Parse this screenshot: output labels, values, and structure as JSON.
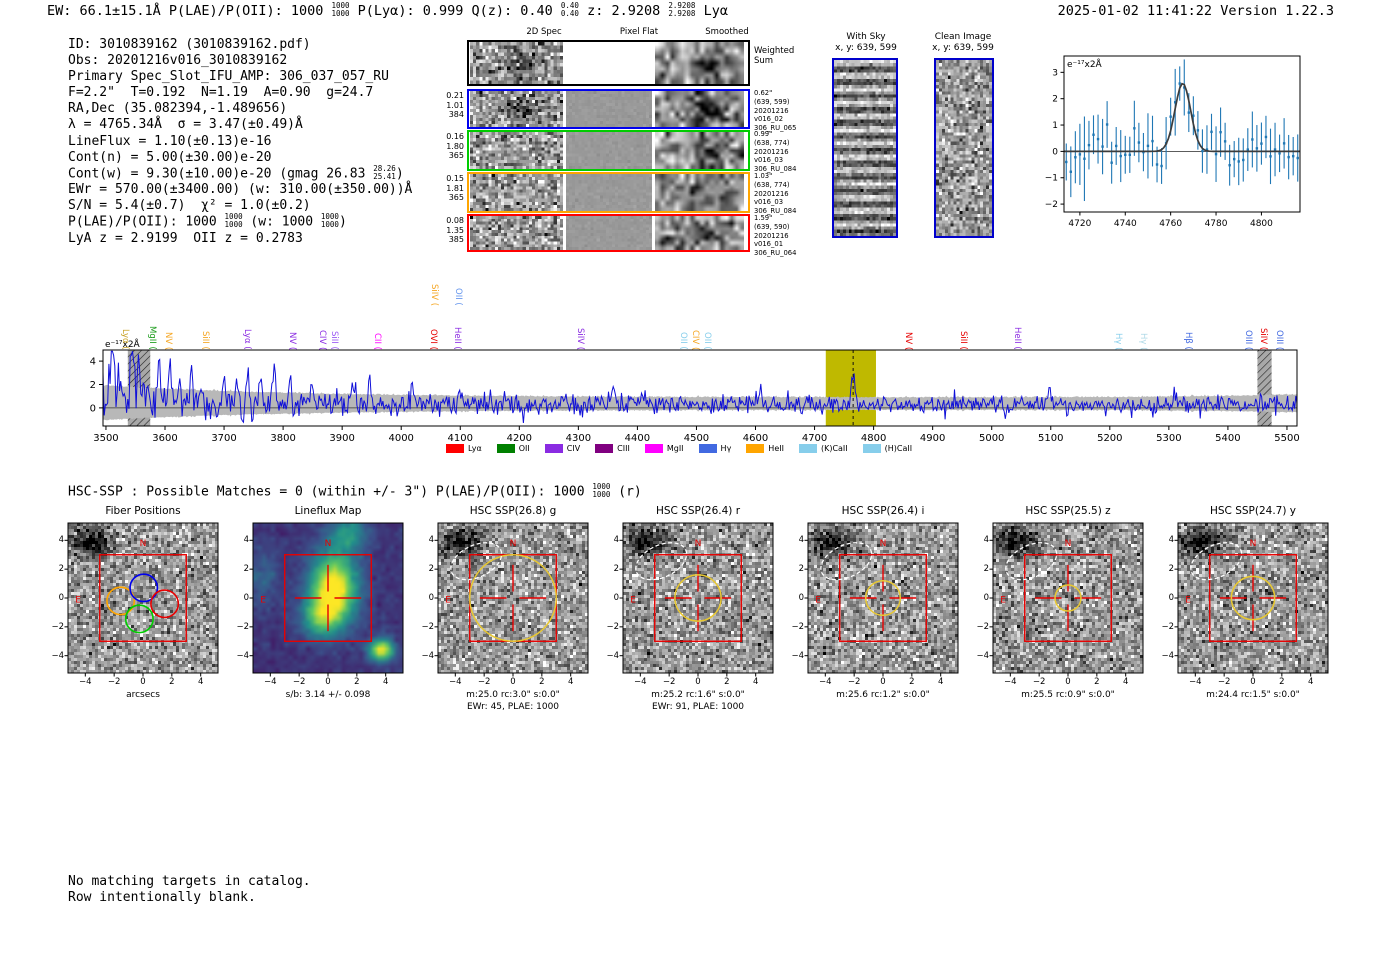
{
  "header": {
    "segments": [
      {
        "t": "EW: 66.1±15.1Å  P(LAE)/P(OII): 1000 "
      },
      {
        "f": [
          "1000",
          "1000"
        ]
      },
      {
        "t": "  P(Lyα): 0.999  Q(z): 0.40 "
      },
      {
        "f": [
          "0.40",
          "0.40"
        ]
      },
      {
        "t": "  z: 2.9208 "
      },
      {
        "f": [
          "2.9208",
          "2.9208"
        ]
      },
      {
        "t": " Lyα"
      }
    ],
    "timestamp": "2025-01-02 11:41:22",
    "version": "Version 1.22.3"
  },
  "info_block": {
    "lines": [
      [
        {
          "t": "ID: 3010839162 (3010839162.pdf)"
        }
      ],
      [
        {
          "t": "Obs: 20201216v016_3010839162"
        }
      ],
      [
        {
          "t": "Primary Spec_Slot_IFU_AMP: 306_037_057_RU"
        }
      ],
      [
        {
          "t": "F=2.2\"  T=0.192  N=1.19  A=0.90  g=24.7"
        }
      ],
      [
        {
          "t": "RA,Dec (35.082394,-1.489656)"
        }
      ],
      [
        {
          "t": "λ = 4765.34Å  σ = 3.47(±0.49)Å"
        }
      ],
      [
        {
          "t": "LineFlux = 1.10(±0.13)e-16"
        }
      ],
      [
        {
          "t": "Cont(n) = 5.00(±30.00)e-20"
        }
      ],
      [
        {
          "t": "Cont(w) = 9.30(±10.00)e-20 (gmag 26.83 "
        },
        {
          "f": [
            "28.26",
            "25.41"
          ]
        },
        {
          "t": ")"
        }
      ],
      [
        {
          "t": "EWr = 570.00(±3400.00) (w: 310.00(±350.00))Å"
        }
      ],
      [
        {
          "t": "S/N = 5.4(±0.7)  χ² = 1.0(±0.2)"
        }
      ],
      [
        {
          "t": "P(LAE)/P(OII): 1000 "
        },
        {
          "f": [
            "1000",
            "1000"
          ]
        },
        {
          "t": " (w: 1000 "
        },
        {
          "f": [
            "1000",
            "1000"
          ]
        },
        {
          "t": ")"
        }
      ],
      [
        {
          "t": "LyA z = 2.9199  OII z = 0.2783"
        }
      ]
    ]
  },
  "spec2d": {
    "col_headers": [
      "2D Spec",
      "Pixel Flat",
      "Smoothed"
    ],
    "rows": [
      {
        "border": "#000000",
        "left": [],
        "right": [
          "Weighted",
          "Sum"
        ],
        "flat": "white"
      },
      {
        "border": "#0000ee",
        "left": [
          "0.21",
          "1.01",
          "384"
        ],
        "right": [
          "0.62\"",
          "(639, 599)",
          "20201216",
          "v016_02",
          "306_RU_065"
        ],
        "flat": "gray"
      },
      {
        "border": "#00cc00",
        "left": [
          "0.16",
          "1.80",
          "365"
        ],
        "right": [
          "0.99\"",
          "(638, 774)",
          "20201216",
          "v016_03",
          "306_RU_084"
        ],
        "flat": "gray"
      },
      {
        "border": "#ffa500",
        "left": [
          "0.15",
          "1.81",
          "365"
        ],
        "right": [
          "1.03\"",
          "(638, 774)",
          "20201216",
          "v016_03",
          "306_RU_084"
        ],
        "flat": "gray"
      },
      {
        "border": "#ff0000",
        "left": [
          "0.08",
          "1.35",
          "385"
        ],
        "right": [
          "1.59\"",
          "(639, 590)",
          "20201216",
          "v016_01",
          "306_RU_064"
        ],
        "flat": "gray"
      }
    ]
  },
  "sky_panels": [
    {
      "title": "With Sky",
      "subtitle": "x, y: 639, 599",
      "pattern": "stripes"
    },
    {
      "title": "Clean Image",
      "subtitle": "x, y: 639, 599",
      "pattern": "noise"
    }
  ],
  "chart_data": [
    {
      "id": "line_fit_zoom",
      "type": "line+errorbar",
      "unit_label": "e⁻¹⁷x2Å",
      "x_ticks": [
        4720,
        4740,
        4760,
        4780,
        4800
      ],
      "y_ticks": [
        -2,
        -1,
        0,
        1,
        2,
        3
      ],
      "xlim": [
        4713,
        4817
      ],
      "ylim": [
        -2.3,
        3.62
      ],
      "gaussian_fit": {
        "center": 4765.34,
        "sigma": 3.47,
        "amplitude": 2.58
      },
      "continuum": 0.0,
      "errorbar_color": "#1f77b4",
      "fit_color": "#3c3c3c"
    },
    {
      "id": "full_spectrum",
      "type": "line",
      "unit_label": "e⁻¹⁷x2Å",
      "xlim": [
        3495,
        5517
      ],
      "ylim": [
        -1.55,
        4.95
      ],
      "x_ticks": [
        3500,
        3600,
        3700,
        3800,
        3900,
        4000,
        4100,
        4200,
        4300,
        4400,
        4500,
        4600,
        4700,
        4800,
        4900,
        5000,
        5100,
        5200,
        5300,
        5400,
        5500
      ],
      "y_ticks": [
        0,
        2,
        4
      ],
      "line_color": "#1010d8",
      "band_color": "#b8b8b8",
      "emission_peak": {
        "center": 4765.34,
        "amplitude": 2.45,
        "sigma": 3.5
      },
      "highlight_region": {
        "x0": 4719,
        "x1": 4804,
        "color": "#bfb900",
        "marker_line": 4765.34
      },
      "masked_regions": [
        [
          3537,
          3575
        ],
        [
          5450,
          5474
        ]
      ],
      "line_labels": [
        {
          "text": "Lyα",
          "color": "#c9a227",
          "wl": 3532,
          "tier": 0
        },
        {
          "text": "MgII",
          "color": "#1a9c1a",
          "wl": 3578,
          "tier": 0
        },
        {
          "text": "NV",
          "color": "#f5a623",
          "wl": 3605,
          "tier": 0
        },
        {
          "text": "SiII",
          "color": "#f5a623",
          "wl": 3668,
          "tier": 0
        },
        {
          "text": "Lyα",
          "color": "#8a2be2",
          "wl": 3739,
          "tier": 0
        },
        {
          "text": "NV",
          "color": "#8a2be2",
          "wl": 3815,
          "tier": 0
        },
        {
          "text": "CIV",
          "color": "#8a2be2",
          "wl": 3866,
          "tier": 0
        },
        {
          "text": "SiII",
          "color": "#9b59f5",
          "wl": 3886,
          "tier": 0
        },
        {
          "text": "CII",
          "color": "#ff00ff",
          "wl": 3959,
          "tier": 0
        },
        {
          "text": "SiIV",
          "color": "#f5a623",
          "wl": 4055,
          "tier": 1
        },
        {
          "text": "OVI",
          "color": "#e60000",
          "wl": 4053,
          "tier": 0
        },
        {
          "text": "OII",
          "color": "#6495ed",
          "wl": 4096,
          "tier": 1
        },
        {
          "text": "HeII",
          "color": "#8a2be2",
          "wl": 4094,
          "tier": 0
        },
        {
          "text": "SiIV",
          "color": "#8a2be2",
          "wl": 4303,
          "tier": 0
        },
        {
          "text": "OII",
          "color": "#87ceeb",
          "wl": 4477,
          "tier": 0
        },
        {
          "text": "CIV",
          "color": "#f5a623",
          "wl": 4497,
          "tier": 0
        },
        {
          "text": "OII",
          "color": "#87ceeb",
          "wl": 4518,
          "tier": 0
        },
        {
          "text": "NV",
          "color": "#e60000",
          "wl": 4858,
          "tier": 0
        },
        {
          "text": "SiII",
          "color": "#e60000",
          "wl": 4951,
          "tier": 0
        },
        {
          "text": "HeII",
          "color": "#8a2be2",
          "wl": 5043,
          "tier": 0
        },
        {
          "text": "Hγ",
          "color": "#87ceeb",
          "wl": 5214,
          "tier": 0
        },
        {
          "text": "Hγ",
          "color": "#add8e6",
          "wl": 5256,
          "tier": 0
        },
        {
          "text": "Hβ",
          "color": "#4169e1",
          "wl": 5332,
          "tier": 0
        },
        {
          "text": "OIII",
          "color": "#4169e1",
          "wl": 5434,
          "tier": 0
        },
        {
          "text": "SiIV",
          "color": "#e60000",
          "wl": 5459,
          "tier": 0
        },
        {
          "text": "OIII",
          "color": "#4169e1",
          "wl": 5486,
          "tier": 0
        }
      ],
      "legend": [
        {
          "label": "Lyα",
          "color": "#ff0000"
        },
        {
          "label": "OII",
          "color": "#008000"
        },
        {
          "label": "CIV",
          "color": "#8a2be2"
        },
        {
          "label": "CIII",
          "color": "#800080"
        },
        {
          "label": "MgII",
          "color": "#ff00ff"
        },
        {
          "label": "Hγ",
          "color": "#4169e1"
        },
        {
          "label": "HeII",
          "color": "#ffa500"
        },
        {
          "label": "(K)CaII",
          "color": "#87ceeb"
        },
        {
          "label": "(H)CaII",
          "color": "#87ceeb"
        }
      ],
      "legend_position": "bottom"
    }
  ],
  "hsc_header": {
    "segments": [
      {
        "t": "HSC-SSP : Possible Matches = 0 (within +/- 3\")  P(LAE)/P(OII): 1000 "
      },
      {
        "f": [
          "1000",
          "1000"
        ]
      },
      {
        "t": " (r)"
      }
    ]
  },
  "cutout_axes": {
    "x_ticks": [
      -4,
      -2,
      0,
      2,
      4
    ],
    "y_ticks": [
      4,
      2,
      0,
      -2,
      -4
    ],
    "compass_n": "N",
    "compass_e": "E"
  },
  "cutouts": [
    {
      "title": "Fiber Positions",
      "type": "fibers",
      "captions": [
        "arcsecs"
      ]
    },
    {
      "title": "Lineflux Map",
      "type": "viridis",
      "captions": [
        "s/b: 3.14 +/- 0.098"
      ]
    },
    {
      "title": "HSC SSP(26.8) g",
      "type": "hsc",
      "circle_r": 3.0,
      "captions": [
        "m:25.0 rc:3.0\"  s:0.0\"",
        "EWr: 45, PLAE: 1000"
      ]
    },
    {
      "title": "HSC SSP(26.4) r",
      "type": "hsc",
      "circle_r": 1.6,
      "captions": [
        "m:25.2 rc:1.6\"  s:0.0\"",
        "EWr: 91, PLAE: 1000"
      ]
    },
    {
      "title": "HSC SSP(26.4) i",
      "type": "hsc",
      "circle_r": 1.2,
      "captions": [
        "m:25.6 rc:1.2\"  s:0.0\""
      ]
    },
    {
      "title": "HSC SSP(25.5) z",
      "type": "hsc",
      "circle_r": 0.9,
      "captions": [
        "m:25.5 rc:0.9\"  s:0.0\""
      ]
    },
    {
      "title": "HSC SSP(24.7) y",
      "type": "hsc",
      "circle_r": 1.5,
      "captions": [
        "m:24.4 rc:1.5\"  s:0.0\""
      ]
    }
  ],
  "footer": {
    "lines": [
      "No matching targets in catalog.",
      "Row intentionally blank."
    ]
  },
  "colors": {
    "accent_blue": "#1f77b4",
    "spectrum_blue": "#1010d8",
    "highlight_yellow": "#bfb900",
    "marker_red": "#ff0000",
    "aperture_yellow": "#e8c832"
  }
}
